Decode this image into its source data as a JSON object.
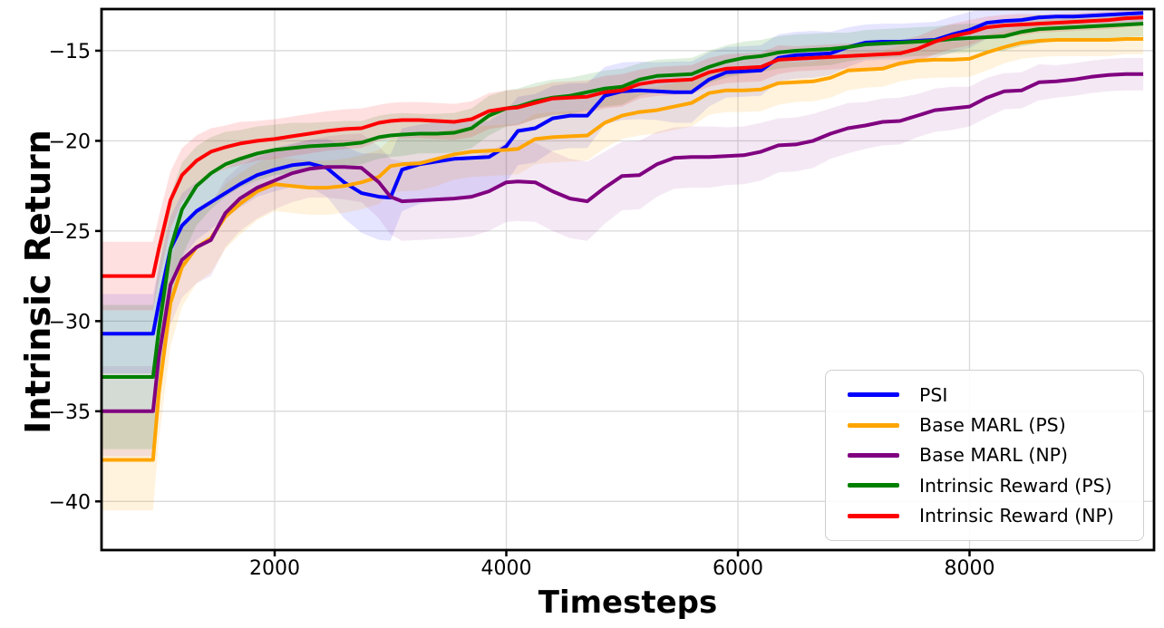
{
  "figure": {
    "background": "#ffffff",
    "grid_color": "#d9d9d9",
    "spine_color": "#000000",
    "text_color": "#000000"
  },
  "chart_data": {
    "type": "line",
    "title": "",
    "xlabel": "Timesteps",
    "ylabel": "Intrinsic Return",
    "xlim": [
      505,
      9593
    ],
    "ylim": [
      -42.7,
      -12.69
    ],
    "grid": true,
    "legend_position": "lower right",
    "xticks": [
      2000,
      4000,
      6000,
      8000
    ],
    "yticks": [
      -15,
      -20,
      -25,
      -30,
      -35,
      -40
    ],
    "xtick_labels": [
      "2000",
      "4000",
      "6000",
      "8000"
    ],
    "ytick_labels": [
      "−15",
      "−20",
      "−25",
      "−30",
      "−35",
      "−40"
    ],
    "x": [
      500,
      950,
      1000,
      1100,
      1200,
      1325,
      1450,
      1575,
      1700,
      1850,
      2000,
      2150,
      2300,
      2450,
      2600,
      2750,
      2900,
      3000,
      3100,
      3250,
      3400,
      3550,
      3700,
      3850,
      4000,
      4100,
      4250,
      4400,
      4550,
      4700,
      4850,
      5000,
      5150,
      5300,
      5450,
      5600,
      5750,
      5900,
      6050,
      6200,
      6350,
      6500,
      6650,
      6800,
      6950,
      7100,
      7250,
      7400,
      7550,
      7700,
      7850,
      8000,
      8150,
      8300,
      8450,
      8600,
      8750,
      8900,
      9050,
      9200,
      9350,
      9500
    ],
    "series": [
      {
        "name": "PSI",
        "color": "#0000ff",
        "band_opacity": 0.1,
        "values": [
          -30.7,
          -30.7,
          -29.0,
          -26.0,
          -24.7,
          -23.9,
          -23.4,
          -22.9,
          -22.4,
          -21.9,
          -21.6,
          -21.35,
          -21.25,
          -21.5,
          -22.3,
          -22.9,
          -23.1,
          -23.15,
          -21.6,
          -21.3,
          -21.15,
          -21.0,
          -20.95,
          -20.9,
          -20.3,
          -19.45,
          -19.3,
          -18.75,
          -18.6,
          -18.6,
          -17.5,
          -17.25,
          -17.2,
          -17.25,
          -17.3,
          -17.3,
          -16.6,
          -16.2,
          -16.15,
          -16.1,
          -15.4,
          -15.25,
          -15.2,
          -15.15,
          -14.8,
          -14.55,
          -14.5,
          -14.5,
          -14.45,
          -14.4,
          -14.1,
          -13.85,
          -13.45,
          -13.35,
          -13.3,
          -13.15,
          -13.1,
          -13.1,
          -13.05,
          -13.0,
          -12.95,
          -12.9
        ],
        "band": [
          2.2,
          2.2,
          2.0,
          1.8,
          1.8,
          1.6,
          1.5,
          1.4,
          1.3,
          1.2,
          1.2,
          1.2,
          1.3,
          1.6,
          2.0,
          2.2,
          2.4,
          2.4,
          2.3,
          2.2,
          2.2,
          2.1,
          2.1,
          2.0,
          2.0,
          1.9,
          1.9,
          1.8,
          1.8,
          1.8,
          1.6,
          1.6,
          1.6,
          1.6,
          1.7,
          1.7,
          1.5,
          1.4,
          1.4,
          1.4,
          1.3,
          1.3,
          1.3,
          1.2,
          1.1,
          1.0,
          1.0,
          1.0,
          1.0,
          1.0,
          1.0,
          1.0,
          0.9,
          0.8,
          0.7,
          0.6,
          0.6,
          0.5,
          0.5,
          0.5,
          0.5,
          0.5
        ]
      },
      {
        "name": "Base MARL (PS)",
        "color": "#ffa500",
        "band_opacity": 0.13,
        "values": [
          -37.7,
          -37.7,
          -34.0,
          -29.0,
          -27.0,
          -25.9,
          -25.4,
          -24.2,
          -23.5,
          -22.8,
          -22.4,
          -22.5,
          -22.6,
          -22.6,
          -22.5,
          -22.3,
          -22.0,
          -21.4,
          -21.3,
          -21.25,
          -21.0,
          -20.75,
          -20.6,
          -20.55,
          -20.5,
          -20.45,
          -19.9,
          -19.8,
          -19.75,
          -19.7,
          -19.0,
          -18.6,
          -18.4,
          -18.3,
          -18.1,
          -17.9,
          -17.35,
          -17.2,
          -17.2,
          -17.15,
          -16.8,
          -16.75,
          -16.7,
          -16.5,
          -16.1,
          -16.05,
          -16.0,
          -15.7,
          -15.55,
          -15.5,
          -15.5,
          -15.45,
          -15.1,
          -14.8,
          -14.55,
          -14.45,
          -14.4,
          -14.4,
          -14.4,
          -14.4,
          -14.35,
          -14.35
        ],
        "band": [
          2.8,
          2.8,
          2.6,
          2.4,
          2.2,
          2.0,
          1.9,
          1.8,
          1.7,
          1.6,
          1.5,
          1.5,
          1.5,
          1.5,
          1.5,
          1.5,
          1.5,
          1.5,
          1.5,
          1.5,
          1.5,
          1.4,
          1.4,
          1.4,
          1.4,
          1.4,
          1.4,
          1.4,
          1.4,
          1.4,
          1.4,
          1.3,
          1.3,
          1.3,
          1.3,
          1.3,
          1.2,
          1.2,
          1.2,
          1.2,
          1.2,
          1.1,
          1.1,
          1.1,
          1.1,
          1.0,
          1.0,
          1.0,
          1.0,
          1.0,
          1.0,
          1.0,
          1.0,
          0.9,
          0.9,
          0.9,
          0.9,
          0.9,
          0.9,
          0.9,
          0.85,
          0.85
        ]
      },
      {
        "name": "Base MARL (NP)",
        "color": "#800080",
        "band_opacity": 0.09,
        "values": [
          -35.0,
          -35.0,
          -32.0,
          -28.0,
          -26.6,
          -25.9,
          -25.5,
          -24.0,
          -23.2,
          -22.6,
          -22.2,
          -21.8,
          -21.55,
          -21.45,
          -21.45,
          -21.5,
          -22.3,
          -23.1,
          -23.35,
          -23.3,
          -23.25,
          -23.2,
          -23.1,
          -22.8,
          -22.3,
          -22.25,
          -22.3,
          -22.8,
          -23.2,
          -23.35,
          -22.6,
          -21.95,
          -21.9,
          -21.3,
          -20.95,
          -20.9,
          -20.9,
          -20.85,
          -20.8,
          -20.6,
          -20.25,
          -20.2,
          -20.0,
          -19.6,
          -19.3,
          -19.15,
          -18.95,
          -18.9,
          -18.6,
          -18.3,
          -18.2,
          -18.1,
          -17.6,
          -17.25,
          -17.2,
          -16.75,
          -16.7,
          -16.6,
          -16.45,
          -16.35,
          -16.3,
          -16.3
        ],
        "band": [
          2.5,
          2.5,
          2.4,
          2.2,
          2.1,
          2.0,
          2.0,
          1.9,
          1.8,
          1.7,
          1.6,
          1.6,
          1.6,
          1.7,
          1.8,
          1.9,
          2.0,
          2.1,
          2.2,
          2.2,
          2.2,
          2.2,
          2.2,
          2.2,
          2.2,
          2.2,
          2.2,
          2.2,
          2.2,
          2.2,
          2.0,
          1.9,
          1.9,
          1.8,
          1.7,
          1.7,
          1.7,
          1.6,
          1.6,
          1.6,
          1.5,
          1.5,
          1.5,
          1.4,
          1.4,
          1.3,
          1.3,
          1.3,
          1.2,
          1.2,
          1.2,
          1.1,
          1.1,
          1.0,
          1.0,
          1.0,
          0.9,
          0.9,
          0.9,
          0.9,
          0.9,
          0.9
        ]
      },
      {
        "name": "Intrinsic Reward (PS)",
        "color": "#008000",
        "band_opacity": 0.13,
        "values": [
          -33.1,
          -33.1,
          -30.5,
          -26.0,
          -23.8,
          -22.5,
          -21.8,
          -21.3,
          -21.0,
          -20.7,
          -20.5,
          -20.4,
          -20.3,
          -20.25,
          -20.2,
          -20.1,
          -19.8,
          -19.7,
          -19.65,
          -19.6,
          -19.6,
          -19.55,
          -19.3,
          -18.6,
          -18.2,
          -18.1,
          -17.8,
          -17.6,
          -17.5,
          -17.3,
          -17.1,
          -17.0,
          -16.6,
          -16.4,
          -16.35,
          -16.3,
          -15.9,
          -15.6,
          -15.4,
          -15.3,
          -15.1,
          -15.0,
          -14.95,
          -14.9,
          -14.8,
          -14.65,
          -14.6,
          -14.55,
          -14.5,
          -14.45,
          -14.35,
          -14.3,
          -14.25,
          -14.2,
          -13.95,
          -13.8,
          -13.75,
          -13.7,
          -13.65,
          -13.6,
          -13.55,
          -13.5
        ],
        "band": [
          4.0,
          4.0,
          3.6,
          3.0,
          2.6,
          2.2,
          2.0,
          1.8,
          1.6,
          1.5,
          1.4,
          1.4,
          1.3,
          1.3,
          1.3,
          1.2,
          1.2,
          1.2,
          1.2,
          1.1,
          1.1,
          1.1,
          1.1,
          1.1,
          1.0,
          1.0,
          1.0,
          1.0,
          1.0,
          1.0,
          1.0,
          1.0,
          0.9,
          0.9,
          0.9,
          0.9,
          0.9,
          0.9,
          0.9,
          0.9,
          0.9,
          0.9,
          0.9,
          0.9,
          0.8,
          0.8,
          0.8,
          0.8,
          0.8,
          0.8,
          0.8,
          0.8,
          0.8,
          0.8,
          0.8,
          0.8,
          0.7,
          0.7,
          0.7,
          0.7,
          0.7,
          0.7
        ]
      },
      {
        "name": "Intrinsic Reward (NP)",
        "color": "#ff0000",
        "band_opacity": 0.12,
        "values": [
          -27.5,
          -27.5,
          -26.0,
          -23.3,
          -21.9,
          -21.1,
          -20.6,
          -20.35,
          -20.15,
          -20.0,
          -19.9,
          -19.75,
          -19.6,
          -19.45,
          -19.35,
          -19.3,
          -19.0,
          -18.9,
          -18.85,
          -18.85,
          -18.9,
          -18.95,
          -18.8,
          -18.35,
          -18.2,
          -18.15,
          -17.9,
          -17.65,
          -17.6,
          -17.55,
          -17.3,
          -17.2,
          -16.85,
          -16.7,
          -16.65,
          -16.6,
          -16.2,
          -16.0,
          -15.95,
          -15.9,
          -15.5,
          -15.45,
          -15.4,
          -15.35,
          -15.3,
          -15.25,
          -15.2,
          -15.15,
          -14.9,
          -14.5,
          -14.2,
          -14.0,
          -13.7,
          -13.6,
          -13.55,
          -13.5,
          -13.45,
          -13.4,
          -13.35,
          -13.3,
          -13.2,
          -13.15
        ],
        "band": [
          1.9,
          1.9,
          1.8,
          1.6,
          1.5,
          1.4,
          1.3,
          1.2,
          1.2,
          1.1,
          1.1,
          1.1,
          1.1,
          1.1,
          1.1,
          1.1,
          1.0,
          1.0,
          1.0,
          1.0,
          1.0,
          1.0,
          1.0,
          1.0,
          1.0,
          1.0,
          0.9,
          0.9,
          0.9,
          0.9,
          0.9,
          0.9,
          0.8,
          0.8,
          0.8,
          0.8,
          0.8,
          0.8,
          0.8,
          0.8,
          0.8,
          0.7,
          0.7,
          0.7,
          0.7,
          0.7,
          0.7,
          0.7,
          0.7,
          0.7,
          0.7,
          0.7,
          0.6,
          0.6,
          0.6,
          0.5,
          0.5,
          0.5,
          0.5,
          0.5,
          0.5,
          0.45
        ]
      }
    ]
  }
}
